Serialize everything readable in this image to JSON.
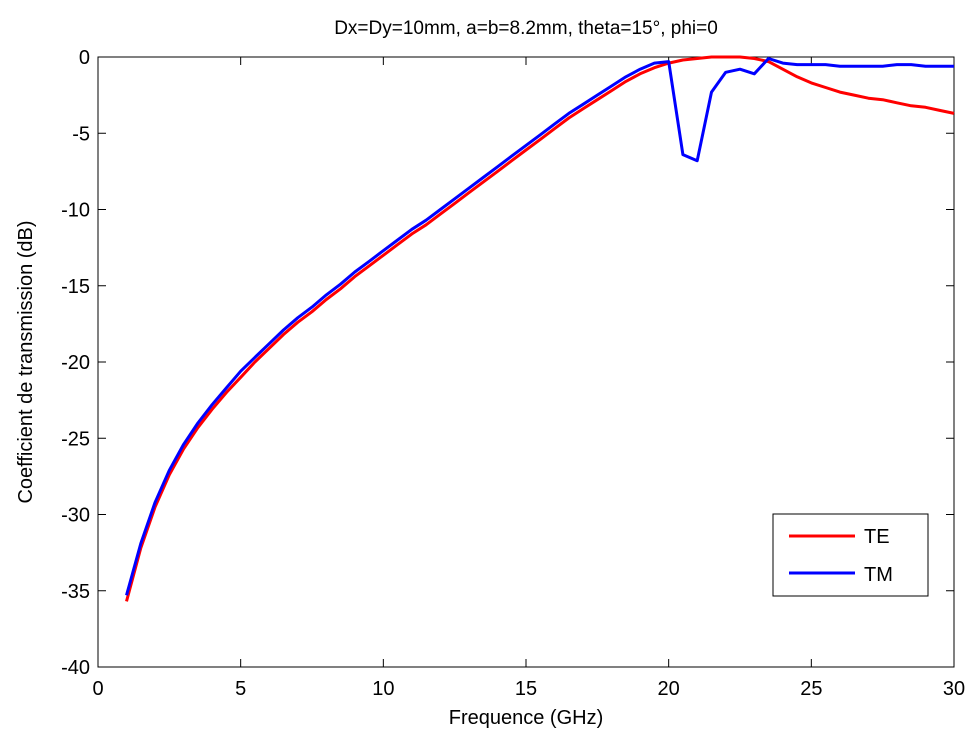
{
  "chart_data": {
    "type": "line",
    "title": "Dx=Dy=10mm, a=b=8.2mm, theta=15°, phi=0",
    "xlabel": "Frequence (GHz)",
    "ylabel": "Coefficient de transmission (dB)",
    "xlim": [
      0,
      30
    ],
    "ylim": [
      -40,
      0
    ],
    "xticks": [
      0,
      5,
      10,
      15,
      20,
      25,
      30
    ],
    "yticks": [
      0,
      -5,
      -10,
      -15,
      -20,
      -25,
      -30,
      -35,
      -40
    ],
    "grid": false,
    "legend_position": "bottom-right",
    "series": [
      {
        "name": "TE",
        "color": "#ff0000",
        "x": [
          1,
          1.5,
          2,
          2.5,
          3,
          3.5,
          4,
          4.5,
          5,
          5.5,
          6,
          6.5,
          7,
          7.5,
          8,
          8.5,
          9,
          9.5,
          10,
          10.5,
          11,
          11.5,
          12,
          12.5,
          13,
          13.5,
          14,
          14.5,
          15,
          15.5,
          16,
          16.5,
          17,
          17.5,
          18,
          18.5,
          19,
          19.5,
          20,
          20.5,
          21,
          21.5,
          22,
          22.5,
          23,
          23.5,
          24,
          24.5,
          25,
          25.5,
          26,
          26.5,
          27,
          27.5,
          28,
          28.5,
          29,
          29.5,
          30
        ],
        "values": [
          -35.7,
          -32.2,
          -29.5,
          -27.4,
          -25.7,
          -24.3,
          -23.1,
          -22.0,
          -21.0,
          -20.0,
          -19.1,
          -18.2,
          -17.4,
          -16.7,
          -15.9,
          -15.2,
          -14.4,
          -13.7,
          -13.0,
          -12.3,
          -11.6,
          -11.0,
          -10.3,
          -9.6,
          -8.9,
          -8.2,
          -7.5,
          -6.8,
          -6.1,
          -5.4,
          -4.7,
          -4.0,
          -3.4,
          -2.8,
          -2.2,
          -1.6,
          -1.1,
          -0.7,
          -0.4,
          -0.2,
          -0.1,
          0.0,
          0.0,
          0.0,
          -0.1,
          -0.3,
          -0.8,
          -1.3,
          -1.7,
          -2.0,
          -2.3,
          -2.5,
          -2.7,
          -2.8,
          -3.0,
          -3.2,
          -3.3,
          -3.5,
          -3.7
        ]
      },
      {
        "name": "TM",
        "color": "#0000ff",
        "x": [
          1,
          1.5,
          2,
          2.5,
          3,
          3.5,
          4,
          4.5,
          5,
          5.5,
          6,
          6.5,
          7,
          7.5,
          8,
          8.5,
          9,
          9.5,
          10,
          10.5,
          11,
          11.5,
          12,
          12.5,
          13,
          13.5,
          14,
          14.5,
          15,
          15.5,
          16,
          16.5,
          17,
          17.5,
          18,
          18.5,
          19,
          19.5,
          20,
          20.5,
          21,
          21.5,
          22,
          22.5,
          23,
          23.5,
          24,
          24.5,
          25,
          25.5,
          26,
          26.5,
          27,
          27.5,
          28,
          28.5,
          29,
          29.5,
          30
        ],
        "values": [
          -35.3,
          -31.9,
          -29.2,
          -27.1,
          -25.4,
          -24.0,
          -22.8,
          -21.7,
          -20.6,
          -19.7,
          -18.8,
          -17.9,
          -17.1,
          -16.4,
          -15.6,
          -14.9,
          -14.1,
          -13.4,
          -12.7,
          -12.0,
          -11.3,
          -10.7,
          -10.0,
          -9.3,
          -8.6,
          -7.9,
          -7.2,
          -6.5,
          -5.8,
          -5.1,
          -4.4,
          -3.7,
          -3.1,
          -2.5,
          -1.9,
          -1.3,
          -0.8,
          -0.4,
          -0.3,
          -6.4,
          -6.8,
          -2.3,
          -1.0,
          -0.8,
          -1.1,
          -0.1,
          -0.4,
          -0.5,
          -0.5,
          -0.5,
          -0.6,
          -0.6,
          -0.6,
          -0.6,
          -0.5,
          -0.5,
          -0.6,
          -0.6,
          -0.6
        ]
      }
    ]
  }
}
